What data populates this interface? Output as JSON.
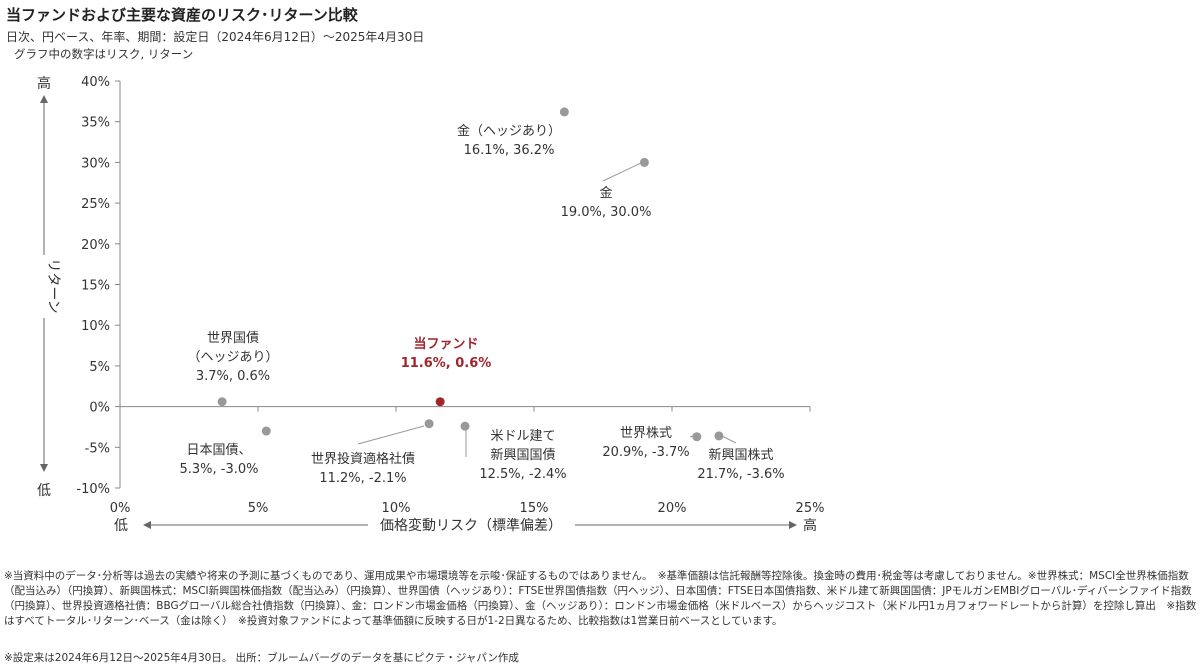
{
  "title": "当ファンドおよび主要な資産のリスク･リターン比較",
  "subtitle": "日次、円ベース、年率、期間：設定日（2024年6月12日）～2025年4月30日",
  "graph_note": "グラフ中の数字はリスク, リターン",
  "chart_data": {
    "type": "scatter",
    "xlabel": "価格変動リスク（標準偏差）",
    "ylabel": "リターン",
    "x_low_label": "低",
    "x_high_label": "高",
    "y_high_label": "高",
    "y_low_label": "低",
    "xlim": [
      0,
      25
    ],
    "ylim": [
      -10,
      40
    ],
    "x_ticks": [
      0,
      5,
      10,
      15,
      20,
      25
    ],
    "y_ticks": [
      -10,
      -5,
      0,
      5,
      10,
      15,
      20,
      25,
      30,
      35,
      40
    ],
    "x_tick_labels": [
      "0%",
      "5%",
      "10%",
      "15%",
      "20%",
      "25%"
    ],
    "y_tick_labels": [
      "-10%",
      "-5%",
      "0%",
      "5%",
      "10%",
      "15%",
      "20%",
      "25%",
      "30%",
      "35%",
      "40%"
    ],
    "points": [
      {
        "name": "当ファンド",
        "label_lines": [
          "当ファンド",
          "11.6%, 0.6%"
        ],
        "risk": 11.6,
        "return": 0.6,
        "highlight": true
      },
      {
        "name": "世界国債（ヘッジあり）",
        "label_lines": [
          "世界国債",
          "（ヘッジあり）",
          "3.7%, 0.6%"
        ],
        "risk": 3.7,
        "return": 0.6,
        "highlight": false
      },
      {
        "name": "日本国債",
        "label_lines": [
          "日本国債、",
          "5.3%, -3.0%"
        ],
        "risk": 5.3,
        "return": -3.0,
        "highlight": false
      },
      {
        "name": "世界投資適格社債",
        "label_lines": [
          "世界投資適格社債",
          "11.2%, -2.1%"
        ],
        "risk": 11.2,
        "return": -2.1,
        "highlight": false
      },
      {
        "name": "米ドル建て新興国国債",
        "label_lines": [
          "米ドル建て",
          "新興国国債",
          "12.5%, -2.4%"
        ],
        "risk": 12.5,
        "return": -2.4,
        "highlight": false
      },
      {
        "name": "世界株式",
        "label_lines": [
          "世界株式",
          "20.9%, -3.7%"
        ],
        "risk": 20.9,
        "return": -3.7,
        "highlight": false
      },
      {
        "name": "新興国株式",
        "label_lines": [
          "新興国株式",
          "21.7%, -3.6%"
        ],
        "risk": 21.7,
        "return": -3.6,
        "highlight": false
      },
      {
        "name": "金（ヘッジあり）",
        "label_lines": [
          "金（ヘッジあり）",
          "16.1%, 36.2%"
        ],
        "risk": 16.1,
        "return": 36.2,
        "highlight": false
      },
      {
        "name": "金",
        "label_lines": [
          "金",
          "19.0%, 30.0%"
        ],
        "risk": 19.0,
        "return": 30.0,
        "highlight": false
      }
    ]
  },
  "footnotes": {
    "main": "※当資料中のデータ･分析等は過去の実績や将来の予測に基づくものであり、運用成果や市場環境等を示唆･保証するものではありません。　※基準価額は信託報酬等控除後。換金時の費用･税金等は考慮しておりません。※世界株式：MSCI全世界株価指数（配当込み）（円換算）、新興国株式：MSCI新興国株価指数（配当込み）（円換算）、世界国債（ヘッジあり）：FTSE世界国債指数（円ヘッジ）、日本国債：FTSE日本国債指数、米ドル建て新興国国債：JPモルガンEMBIグローバル･ディバーシファイド指数（円換算）、世界投資適格社債：BBGグローバル総合社債指数（円換算）、金：ロンドン市場金価格（円換算）、金（ヘッジあり）：ロンドン市場金価格（米ドルベース）からヘッジコスト（米ドル円1ヵ月フォワードレートから計算）を控除し算出　※指数はすべてトータル･リターン･ベース（金は除く）　※投資対象ファンドによって基準価額に反映する日が1-2日異なるため、比較指数は1営業日前ベースとしています。",
    "source": "※設定来は2024年6月12日～2025年4月30日。 出所：ブルームバーグのデータを基にピクテ・ジャパン作成"
  },
  "colors": {
    "point": "#999999",
    "highlight_point": "#a0262c",
    "axis": "#888888"
  }
}
